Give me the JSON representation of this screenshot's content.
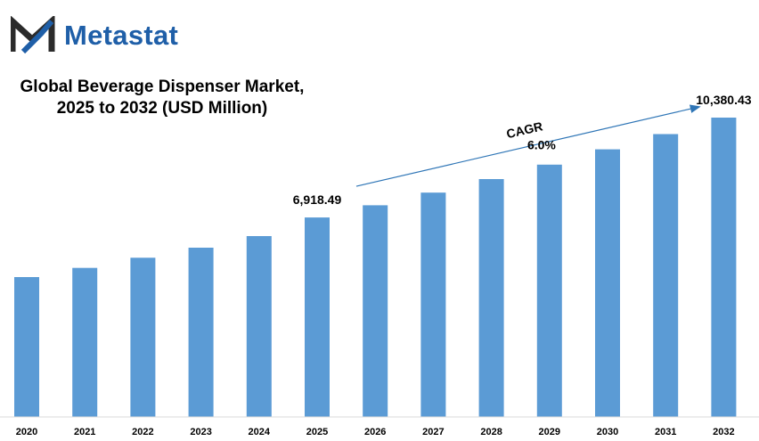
{
  "brand": {
    "name": "Metastat",
    "logo_icon": "metastat-m-logo",
    "colors": {
      "dark": "#2b2b2b",
      "accent": "#1f5fa8"
    }
  },
  "chart_data": {
    "type": "bar",
    "title_lines": [
      "Global Beverage Dispenser Market,",
      "2025 to 2032 (USD Million)"
    ],
    "categories": [
      "2020",
      "2021",
      "2022",
      "2023",
      "2024",
      "2025",
      "2026",
      "2027",
      "2028",
      "2029",
      "2030",
      "2031",
      "2032"
    ],
    "values": [
      4850,
      5170,
      5520,
      5870,
      6270,
      6918.49,
      7340,
      7780,
      8250,
      8750,
      9280,
      9810,
      10380.43
    ],
    "data_labels": [
      {
        "category": "2025",
        "text": "6,918.49"
      },
      {
        "category": "2032",
        "text": "10,380.43"
      }
    ],
    "annotation": {
      "label": "CAGR",
      "value": "6.0%",
      "from": "2025",
      "to": "2032"
    },
    "ylim": [
      0,
      10800
    ],
    "grid": false,
    "bar_color": "#5b9bd5",
    "arrow_color": "#2e75b6"
  }
}
